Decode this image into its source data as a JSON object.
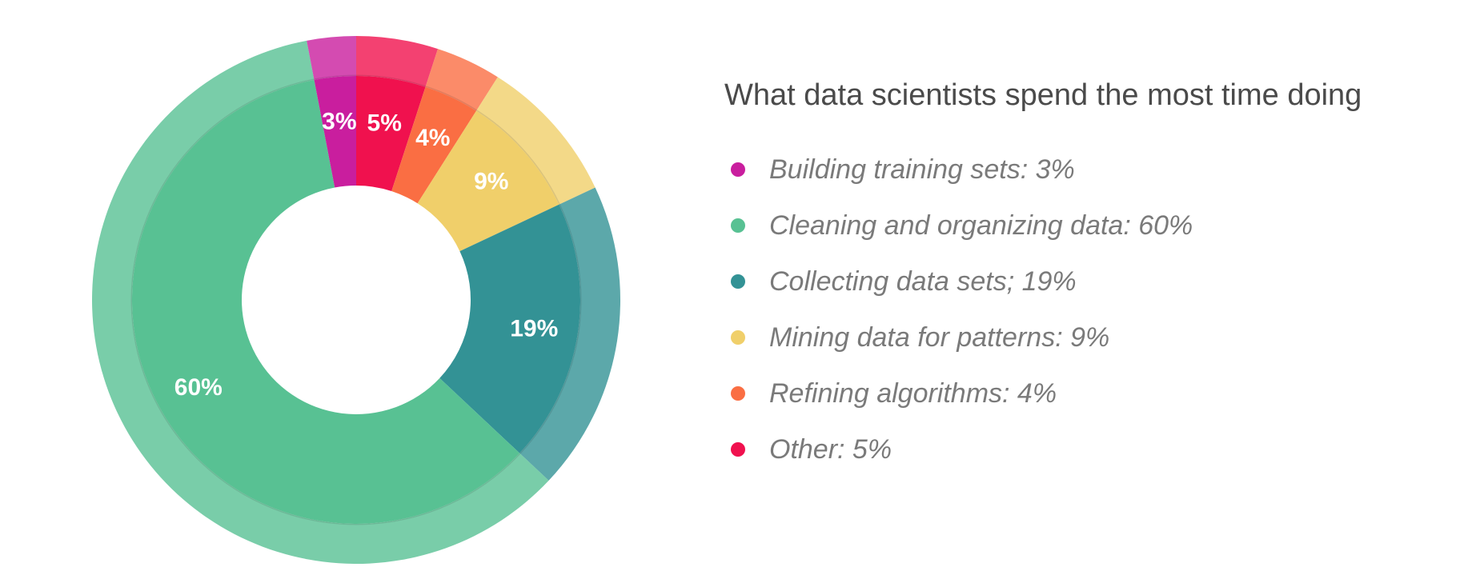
{
  "chart_data": {
    "type": "pie",
    "title": "What data scientists spend the most time doing",
    "legend_position": "right",
    "slices": [
      {
        "category": "Building training sets",
        "value": 3,
        "label": "3%",
        "legend": "Building training sets: 3%",
        "color": "#C91E9E"
      },
      {
        "category": "Cleaning and organizing data",
        "value": 60,
        "label": "60%",
        "legend": "Cleaning and organizing data: 60%",
        "color": "#58C193"
      },
      {
        "category": "Collecting data sets",
        "value": 19,
        "label": "19%",
        "legend": "Collecting data sets; 19%",
        "color": "#339295"
      },
      {
        "category": "Mining data for patterns",
        "value": 9,
        "label": "9%",
        "legend": "Mining data for patterns: 9%",
        "color": "#F0CF6A"
      },
      {
        "category": "Refining algorithms",
        "value": 4,
        "label": "4%",
        "legend": "Refining algorithms: 4%",
        "color": "#FA6E43"
      },
      {
        "category": "Other",
        "value": 5,
        "label": "5%",
        "legend": "Other: 5%",
        "color": "#F0114E"
      }
    ]
  }
}
